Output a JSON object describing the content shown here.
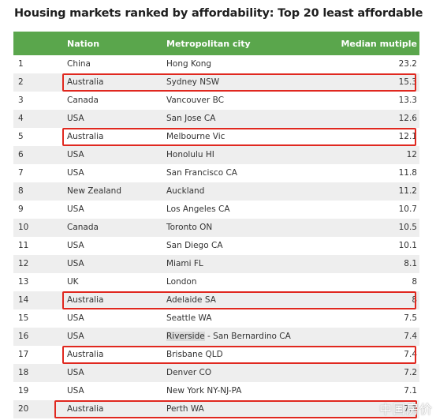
{
  "title": "Housing markets ranked by affordability: Top 20 least affordable",
  "headers": {
    "rank": "",
    "nation": "Nation",
    "city": "Metropolitan city",
    "value": "Median mutiple"
  },
  "rows": [
    {
      "rank": "1",
      "nation": "China",
      "city": "Hong Kong",
      "value": "23.2"
    },
    {
      "rank": "2",
      "nation": "Australia",
      "city": "Sydney NSW",
      "value": "15.3",
      "highlighted": true
    },
    {
      "rank": "3",
      "nation": "Canada",
      "city": "Vancouver BC",
      "value": "13.3"
    },
    {
      "rank": "4",
      "nation": "USA",
      "city": "San Jose CA",
      "value": "12.6"
    },
    {
      "rank": "5",
      "nation": "Australia",
      "city": "Melbourne Vic",
      "value": "12.1",
      "highlighted": true
    },
    {
      "rank": "6",
      "nation": "USA",
      "city": "Honolulu HI",
      "value": "12"
    },
    {
      "rank": "7",
      "nation": "USA",
      "city": "San Francisco CA",
      "value": "11.8"
    },
    {
      "rank": "8",
      "nation": "New Zealand",
      "city": "Auckland",
      "value": "11.2"
    },
    {
      "rank": "9",
      "nation": "USA",
      "city": "Los Angeles CA",
      "value": "10.7"
    },
    {
      "rank": "10",
      "nation": "Canada",
      "city": "Toronto ON",
      "value": "10.5"
    },
    {
      "rank": "11",
      "nation": "USA",
      "city": "San Diego CA",
      "value": "10.1"
    },
    {
      "rank": "12",
      "nation": "USA",
      "city": "Miami FL",
      "value": "8.1"
    },
    {
      "rank": "13",
      "nation": "UK",
      "city": "London",
      "value": "8"
    },
    {
      "rank": "14",
      "nation": "Australia",
      "city": "Adelaide SA",
      "value": "8",
      "highlighted": true
    },
    {
      "rank": "15",
      "nation": "USA",
      "city": "Seattle WA",
      "value": "7.5"
    },
    {
      "rank": "16",
      "nation": "USA",
      "city": "Riverside - San Bernardino CA",
      "city_mark": "Riverside",
      "city_rest": " - San Bernardino CA",
      "value": "7.4"
    },
    {
      "rank": "17",
      "nation": "Australia",
      "city": "Brisbane QLD",
      "value": "7.4",
      "highlighted": true
    },
    {
      "rank": "18",
      "nation": "USA",
      "city": "Denver CO",
      "value": "7.2"
    },
    {
      "rank": "19",
      "nation": "USA",
      "city": "New York NY-NJ-PA",
      "value": "7.1"
    },
    {
      "rank": "20",
      "nation": "Australia",
      "city": "Perth WA",
      "value": "7.1",
      "highlighted": true
    }
  ],
  "watermark": "中国房价",
  "colors": {
    "header_bg": "#5aa64c",
    "highlight_border": "#e0281f",
    "alt_row": "#eeeeee"
  }
}
